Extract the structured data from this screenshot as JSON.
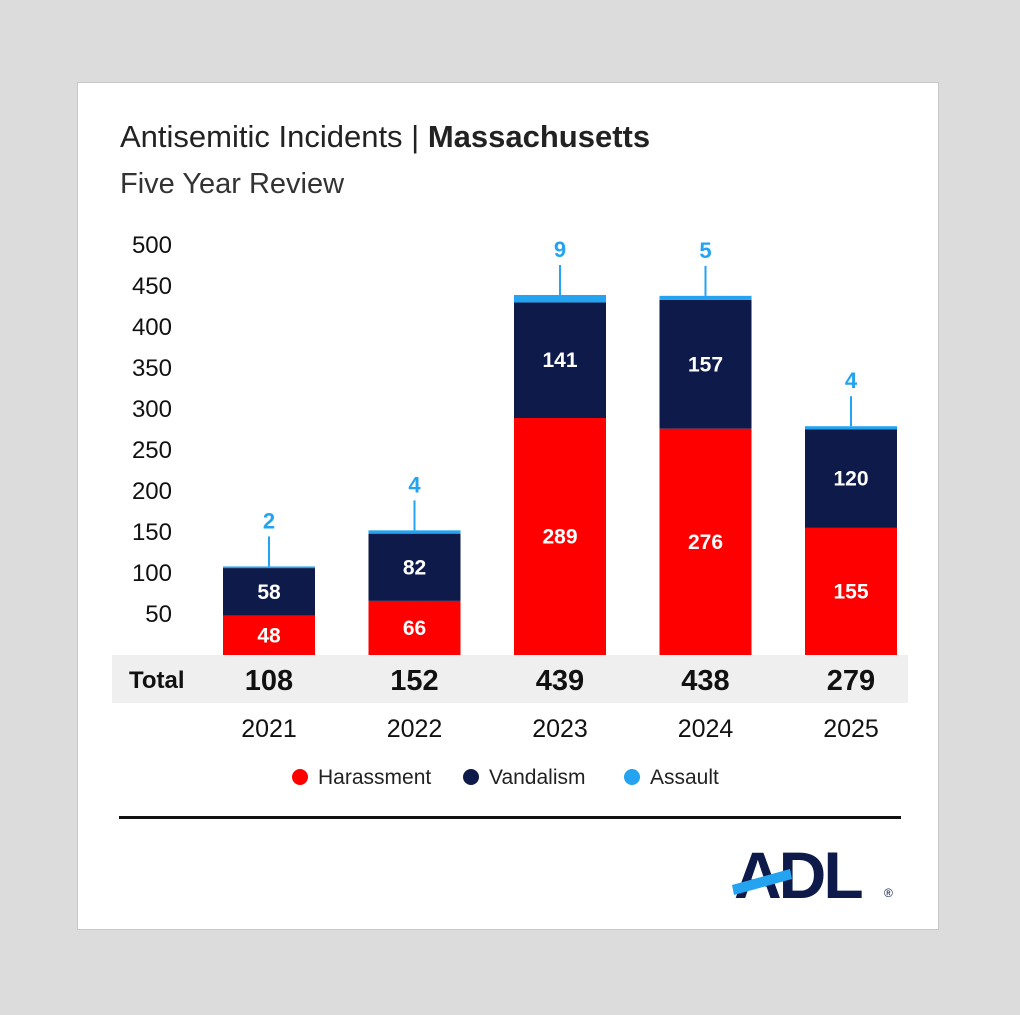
{
  "header": {
    "title_regular": "Antisemitic Incidents | ",
    "title_bold": "Massachusetts",
    "subtitle": "Five Year Review"
  },
  "chart_data": {
    "type": "bar",
    "stacked": true,
    "title": "Antisemitic Incidents | Massachusetts",
    "subtitle": "Five Year Review",
    "categories": [
      "2021",
      "2022",
      "2023",
      "2024",
      "2025"
    ],
    "series": [
      {
        "name": "Harassment",
        "values": [
          48,
          66,
          289,
          276,
          155
        ],
        "color": "#ff0000"
      },
      {
        "name": "Vandalism",
        "values": [
          58,
          82,
          141,
          157,
          120
        ],
        "color": "#0d1a4a"
      },
      {
        "name": "Assault",
        "values": [
          2,
          4,
          9,
          5,
          4
        ],
        "color": "#23a3f0"
      }
    ],
    "totals_label": "Total",
    "totals": [
      108,
      152,
      439,
      438,
      279
    ],
    "y_ticks": [
      50,
      100,
      150,
      200,
      250,
      300,
      350,
      400,
      450,
      500
    ],
    "ylim": [
      0,
      500
    ],
    "grid": false,
    "legend_position": "bottom"
  },
  "logo": {
    "text": "ADL"
  }
}
